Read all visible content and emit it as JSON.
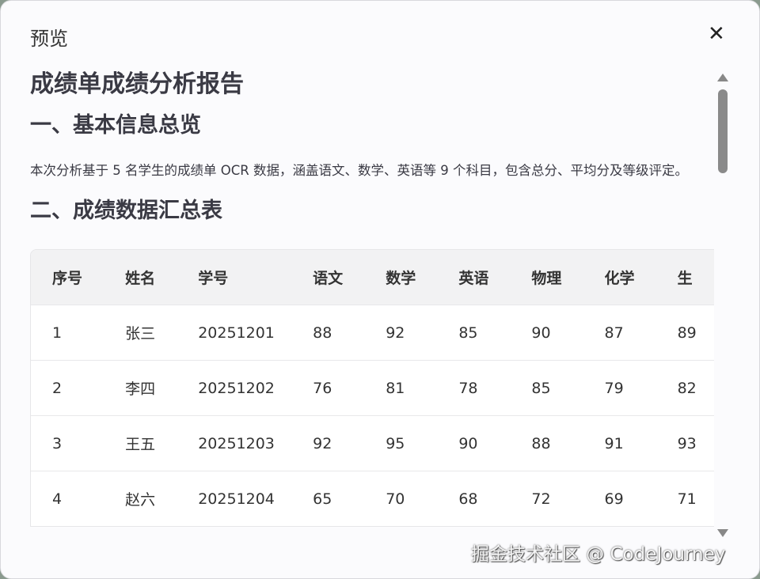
{
  "dialog": {
    "title": "预览",
    "close_icon": "close-icon"
  },
  "report": {
    "title": "成绩单成绩分析报告",
    "section1": "一、基本信息总览",
    "summary": "本次分析基于 5 名学生的成绩单 OCR 数据，涵盖语文、数学、英语等 9 个科目，包含总分、平均分及等级评定。",
    "section2": "二、成绩数据汇总表"
  },
  "table": {
    "headers": [
      "序号",
      "姓名",
      "学号",
      "语文",
      "数学",
      "英语",
      "物理",
      "化学",
      "生"
    ],
    "rows": [
      [
        "1",
        "张三",
        "20251201",
        "88",
        "92",
        "85",
        "90",
        "87",
        "89"
      ],
      [
        "2",
        "李四",
        "20251202",
        "76",
        "81",
        "78",
        "85",
        "79",
        "82"
      ],
      [
        "3",
        "王五",
        "20251203",
        "92",
        "95",
        "90",
        "88",
        "91",
        "93"
      ],
      [
        "4",
        "赵六",
        "20251204",
        "65",
        "70",
        "68",
        "72",
        "69",
        "71"
      ]
    ]
  },
  "watermark": "掘金技术社区 @ CodeJourney"
}
